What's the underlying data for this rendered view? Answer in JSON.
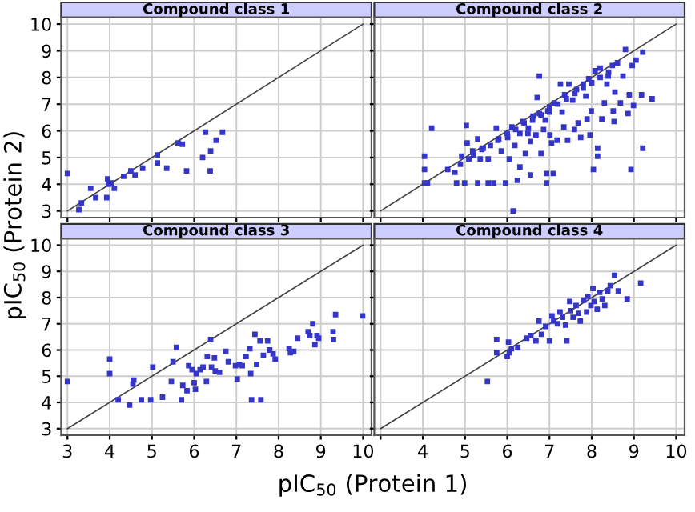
{
  "chart_data": [
    {
      "type": "scatter",
      "title": "Compound class 1",
      "ylabel": "pIC$_{50}$ (Protein 2)",
      "xlim": [
        2.85,
        10.2
      ],
      "ylim": [
        2.75,
        10.25
      ],
      "xticks": [
        3,
        4,
        5,
        6,
        7,
        8,
        9,
        10
      ],
      "yticks": [
        3,
        4,
        5,
        6,
        7,
        8,
        9,
        10
      ],
      "grid": true,
      "tick_labels": "y",
      "series": [
        {
          "type": "line",
          "marker": "none",
          "color": "#444444",
          "x": [
            3,
            10
          ],
          "values": [
            3,
            10
          ]
        },
        {
          "marker": "square",
          "color": "#3535c8",
          "x": [
            3.0,
            3.27,
            3.33,
            3.55,
            3.67,
            3.93,
            3.95,
            3.97,
            4.03,
            4.11,
            4.33,
            4.5,
            4.6,
            4.78,
            5.13,
            5.13,
            5.35,
            5.62,
            5.72,
            5.82,
            6.2,
            6.27,
            6.39,
            6.38,
            6.52,
            6.67
          ],
          "values": [
            4.4,
            3.05,
            3.3,
            3.85,
            3.5,
            3.5,
            4.2,
            4.0,
            4.05,
            3.85,
            4.3,
            4.5,
            4.35,
            4.6,
            5.1,
            4.8,
            4.6,
            5.55,
            5.5,
            4.5,
            5.0,
            5.95,
            5.25,
            4.5,
            5.65,
            5.95
          ]
        }
      ]
    },
    {
      "type": "scatter",
      "title": "Compound class 2",
      "xlim": [
        2.85,
        10.2
      ],
      "ylim": [
        2.75,
        10.25
      ],
      "xticks": [
        3,
        4,
        5,
        6,
        7,
        8,
        9,
        10
      ],
      "yticks": [
        3,
        4,
        5,
        6,
        7,
        8,
        9,
        10
      ],
      "grid": true,
      "tick_labels": false,
      "series": [
        {
          "type": "line",
          "marker": "none",
          "color": "#444444",
          "x": [
            3,
            10
          ],
          "values": [
            3,
            10
          ]
        },
        {
          "marker": "square",
          "color": "#3535c8",
          "x": [
            4.04,
            4.04,
            4.04,
            4.11,
            4.21,
            4.59,
            4.76,
            4.8,
            4.89,
            4.92,
            4.99,
            5.03,
            5.05,
            5.09,
            5.18,
            5.3,
            5.3,
            5.36,
            5.43,
            5.55,
            5.68,
            5.55,
            5.74,
            5.78,
            5.86,
            5.96,
            6.01,
            6.05,
            6.11,
            6.14,
            6.18,
            6.24,
            6.3,
            6.3,
            6.36,
            6.43,
            6.49,
            6.55,
            6.55,
            6.61,
            6.68,
            6.71,
            6.76,
            6.76,
            6.8,
            6.86,
            6.93,
            6.93,
            6.96,
            7.01,
            7.05,
            7.09,
            7.11,
            7.18,
            7.26,
            7.3,
            7.34,
            7.36,
            7.43,
            7.46,
            7.55,
            7.59,
            7.64,
            7.68,
            7.74,
            7.8,
            7.86,
            7.89,
            7.93,
            7.96,
            7.99,
            8.04,
            8.08,
            8.14,
            8.14,
            8.2,
            8.24,
            8.3,
            8.36,
            8.39,
            8.49,
            8.51,
            8.53,
            8.55,
            8.61,
            8.68,
            8.74,
            8.8,
            8.86,
            8.89,
            8.93,
            8.96,
            8.99,
            9.05,
            9.18,
            9.21,
            9.21,
            9.43,
            5.2,
            5.4,
            5.6,
            5.8,
            6.0,
            6.2,
            6.4,
            6.6,
            6.8,
            7.0,
            7.2,
            7.4,
            7.6,
            7.8,
            8.0,
            8.2,
            8.4,
            7.0,
            6.5,
            6.9
          ],
          "values": [
            5.05,
            4.55,
            4.05,
            4.05,
            6.1,
            4.55,
            4.45,
            4.05,
            4.75,
            5.05,
            4.05,
            6.2,
            5.55,
            4.95,
            5.25,
            4.05,
            5.7,
            4.95,
            5.35,
            4.05,
            4.05,
            4.95,
            6.1,
            5.65,
            5.25,
            4.05,
            5.75,
            4.95,
            6.15,
            3.0,
            5.45,
            4.15,
            5.9,
            4.65,
            6.35,
            5.15,
            5.9,
            4.35,
            5.6,
            6.55,
            5.85,
            7.25,
            6.65,
            8.05,
            5.15,
            6.05,
            4.4,
            4.05,
            6.75,
            5.85,
            5.55,
            4.4,
            7.05,
            5.65,
            7.75,
            6.7,
            6.15,
            7.35,
            5.65,
            7.75,
            7.15,
            6.05,
            7.55,
            6.3,
            5.75,
            7.75,
            7.3,
            6.45,
            7.95,
            5.85,
            6.75,
            4.55,
            8.25,
            5.35,
            5.05,
            8.35,
            6.45,
            7.05,
            7.75,
            8.05,
            8.45,
            6.75,
            6.35,
            7.45,
            8.55,
            7.05,
            8.05,
            9.05,
            6.65,
            7.35,
            4.55,
            8.45,
            6.95,
            8.65,
            7.35,
            8.95,
            5.35,
            7.2,
            5.1,
            5.3,
            5.45,
            5.7,
            5.9,
            6.05,
            6.3,
            6.4,
            6.6,
            6.9,
            7.0,
            7.2,
            7.4,
            7.6,
            7.8,
            8.0,
            8.2,
            6.7,
            6.1,
            6.4
          ]
        }
      ]
    },
    {
      "type": "scatter",
      "title": "Compound class 3",
      "xlabel": "pIC$_{50}$ (Protein 1)",
      "xlim": [
        2.85,
        10.2
      ],
      "ylim": [
        2.75,
        10.25
      ],
      "xticks": [
        3,
        4,
        5,
        6,
        7,
        8,
        9,
        10
      ],
      "yticks": [
        3,
        4,
        5,
        6,
        7,
        8,
        9,
        10
      ],
      "grid": true,
      "series": [
        {
          "type": "line",
          "marker": "none",
          "color": "#444444",
          "x": [
            3,
            10
          ],
          "values": [
            3,
            10
          ]
        },
        {
          "marker": "square",
          "color": "#3535c8",
          "x": [
            3.0,
            4.0,
            4.0,
            4.2,
            4.47,
            4.55,
            4.57,
            4.75,
            4.97,
            5.02,
            5.25,
            5.46,
            5.5,
            5.58,
            5.7,
            5.73,
            5.83,
            5.87,
            5.95,
            6.0,
            6.03,
            6.05,
            6.14,
            6.21,
            6.29,
            6.31,
            6.39,
            6.41,
            6.48,
            6.5,
            6.6,
            6.75,
            6.81,
            6.98,
            7.02,
            7.07,
            7.14,
            7.23,
            7.32,
            7.36,
            7.34,
            7.44,
            7.48,
            7.56,
            7.58,
            7.64,
            7.74,
            7.79,
            7.87,
            7.92,
            8.25,
            8.28,
            8.36,
            8.45,
            8.7,
            8.74,
            8.81,
            8.86,
            8.91,
            8.95,
            9.29,
            9.3,
            9.35,
            9.99
          ],
          "values": [
            4.8,
            5.65,
            5.1,
            4.1,
            3.9,
            4.7,
            4.85,
            4.1,
            4.1,
            5.35,
            4.2,
            4.8,
            5.55,
            6.1,
            4.1,
            4.65,
            4.45,
            5.4,
            5.25,
            4.75,
            4.5,
            5.1,
            5.25,
            5.35,
            4.8,
            5.75,
            6.4,
            5.35,
            5.7,
            5.2,
            5.15,
            5.95,
            5.55,
            5.4,
            4.9,
            5.45,
            5.4,
            5.75,
            6.05,
            4.1,
            5.1,
            6.6,
            5.45,
            6.35,
            4.1,
            5.8,
            6.35,
            6.0,
            5.85,
            5.65,
            6.05,
            5.9,
            5.95,
            6.45,
            6.7,
            6.55,
            7.0,
            6.2,
            6.55,
            6.45,
            6.7,
            6.4,
            7.35,
            7.3
          ]
        }
      ]
    },
    {
      "type": "scatter",
      "title": "Compound class 4",
      "xlim": [
        2.85,
        10.2
      ],
      "ylim": [
        2.75,
        10.25
      ],
      "xticks": [
        {
          "value": 3,
          "label": null
        },
        4,
        5,
        6,
        7,
        8,
        9,
        10
      ],
      "yticks": [
        3,
        4,
        5,
        6,
        7,
        8,
        9,
        10
      ],
      "grid": true,
      "tick_labels": "x",
      "series": [
        {
          "type": "line",
          "marker": "none",
          "color": "#444444",
          "x": [
            3,
            10
          ],
          "values": [
            3,
            10
          ]
        },
        {
          "marker": "square",
          "color": "#3535c8",
          "x": [
            5.53,
            5.75,
            5.75,
            6.03,
            6.0,
            6.05,
            6.1,
            6.25,
            6.46,
            6.56,
            6.68,
            6.75,
            6.81,
            6.91,
            7.0,
            7.06,
            7.1,
            7.19,
            7.25,
            7.31,
            7.38,
            7.41,
            7.48,
            7.5,
            7.56,
            7.63,
            7.69,
            7.73,
            7.81,
            7.88,
            7.91,
            7.98,
            8.03,
            8.06,
            8.13,
            8.19,
            8.25,
            8.31,
            8.38,
            8.44,
            8.54,
            8.63,
            8.84,
            9.16
          ],
          "values": [
            4.8,
            6.4,
            5.9,
            6.3,
            5.75,
            5.9,
            6.05,
            6.1,
            6.45,
            6.55,
            6.35,
            7.1,
            6.6,
            6.9,
            6.35,
            7.3,
            7.1,
            7.0,
            7.45,
            7.25,
            6.95,
            6.35,
            7.85,
            7.5,
            7.25,
            7.7,
            7.4,
            7.1,
            7.9,
            7.45,
            8.05,
            7.7,
            8.35,
            7.85,
            7.55,
            8.2,
            7.95,
            7.7,
            8.25,
            8.45,
            8.85,
            8.25,
            7.95,
            8.55
          ]
        }
      ]
    }
  ]
}
